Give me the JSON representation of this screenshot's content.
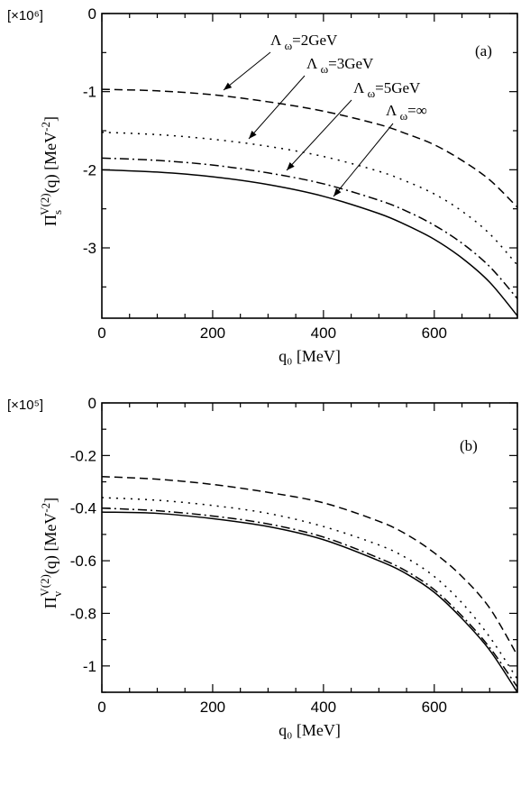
{
  "chart_data": [
    {
      "panel": "(a)",
      "type": "line",
      "scale_factor": "[×10⁶]",
      "xlabel": "q₀ [MeV]",
      "ylabel": "Π_s^V(2)(q) [MeV⁻²]",
      "ylabel_parts": {
        "main": "Π",
        "sub": "s",
        "sup": "V(2)",
        "rest": "(q) [MeV",
        "unit_sup": "-2",
        "close": "]"
      },
      "xlim": [
        0,
        750
      ],
      "ylim": [
        -3.9,
        0
      ],
      "xticks": [
        0,
        200,
        400,
        600
      ],
      "xtick_labels": [
        "0",
        "200",
        "400",
        "600"
      ],
      "yticks": [
        0,
        -1,
        -2,
        -3
      ],
      "ytick_labels": [
        "0",
        "-1",
        "-2",
        "-3"
      ],
      "x": [
        0,
        100,
        200,
        300,
        400,
        500,
        550,
        600,
        650,
        700,
        750
      ],
      "series": [
        {
          "name": "Λ ω=2GeV",
          "style": "dashed",
          "values": [
            -0.97,
            -0.99,
            -1.04,
            -1.13,
            -1.25,
            -1.42,
            -1.54,
            -1.68,
            -1.88,
            -2.13,
            -2.48
          ]
        },
        {
          "name": "Λ ω=3GeV",
          "style": "dotted",
          "values": [
            -1.52,
            -1.55,
            -1.61,
            -1.7,
            -1.83,
            -2.02,
            -2.15,
            -2.31,
            -2.53,
            -2.82,
            -3.22
          ]
        },
        {
          "name": "Λ ω=5GeV",
          "style": "dashdot",
          "values": [
            -1.85,
            -1.88,
            -1.94,
            -2.04,
            -2.18,
            -2.39,
            -2.53,
            -2.71,
            -2.94,
            -3.24,
            -3.65
          ]
        },
        {
          "name": "Λ ω=∞",
          "style": "solid",
          "values": [
            -2.0,
            -2.03,
            -2.09,
            -2.19,
            -2.34,
            -2.56,
            -2.71,
            -2.89,
            -3.13,
            -3.44,
            -3.87
          ]
        }
      ],
      "annotations": [
        {
          "lambda": "Λ",
          "sub": "ω",
          "text": "=2GeV",
          "series": "dashed"
        },
        {
          "lambda": "Λ",
          "sub": "ω",
          "text": "=3GeV",
          "series": "dotted"
        },
        {
          "lambda": "Λ",
          "sub": "ω",
          "text": "=5GeV",
          "series": "dashdot"
        },
        {
          "lambda": "Λ",
          "sub": "ω",
          "text": "=∞",
          "series": "solid"
        }
      ]
    },
    {
      "panel": "(b)",
      "type": "line",
      "scale_factor": "[×10⁵]",
      "xlabel": "q₀ [MeV]",
      "ylabel": "Π_v^V(2)(q) [MeV⁻²]",
      "ylabel_parts": {
        "main": "Π",
        "sub": "v",
        "sup": "V(2)",
        "rest": "(q) [MeV",
        "unit_sup": "-2",
        "close": "]"
      },
      "xlim": [
        0,
        750
      ],
      "ylim": [
        -1.1,
        0
      ],
      "xticks": [
        0,
        200,
        400,
        600
      ],
      "xtick_labels": [
        "0",
        "200",
        "400",
        "600"
      ],
      "yticks": [
        0,
        -0.2,
        -0.4,
        -0.6,
        -0.8,
        -1
      ],
      "ytick_labels": [
        "0",
        "-0.2",
        "-0.4",
        "-0.6",
        "-0.8",
        "-1"
      ],
      "x": [
        0,
        100,
        200,
        300,
        400,
        500,
        550,
        600,
        650,
        700,
        750
      ],
      "series": [
        {
          "name": "Λ ω=2GeV",
          "style": "dashed",
          "values": [
            -0.28,
            -0.29,
            -0.31,
            -0.34,
            -0.38,
            -0.45,
            -0.5,
            -0.57,
            -0.66,
            -0.78,
            -0.96
          ]
        },
        {
          "name": "Λ ω=3GeV",
          "style": "dotted",
          "values": [
            -0.36,
            -0.37,
            -0.39,
            -0.42,
            -0.47,
            -0.54,
            -0.59,
            -0.66,
            -0.76,
            -0.89,
            -1.05
          ]
        },
        {
          "name": "Λ ω=5GeV",
          "style": "dashdot",
          "values": [
            -0.4,
            -0.41,
            -0.43,
            -0.46,
            -0.51,
            -0.59,
            -0.64,
            -0.71,
            -0.81,
            -0.93,
            -1.08
          ]
        },
        {
          "name": "Λ ω=∞",
          "style": "solid",
          "values": [
            -0.415,
            -0.42,
            -0.44,
            -0.47,
            -0.52,
            -0.6,
            -0.65,
            -0.72,
            -0.82,
            -0.94,
            -1.1
          ]
        }
      ]
    }
  ]
}
